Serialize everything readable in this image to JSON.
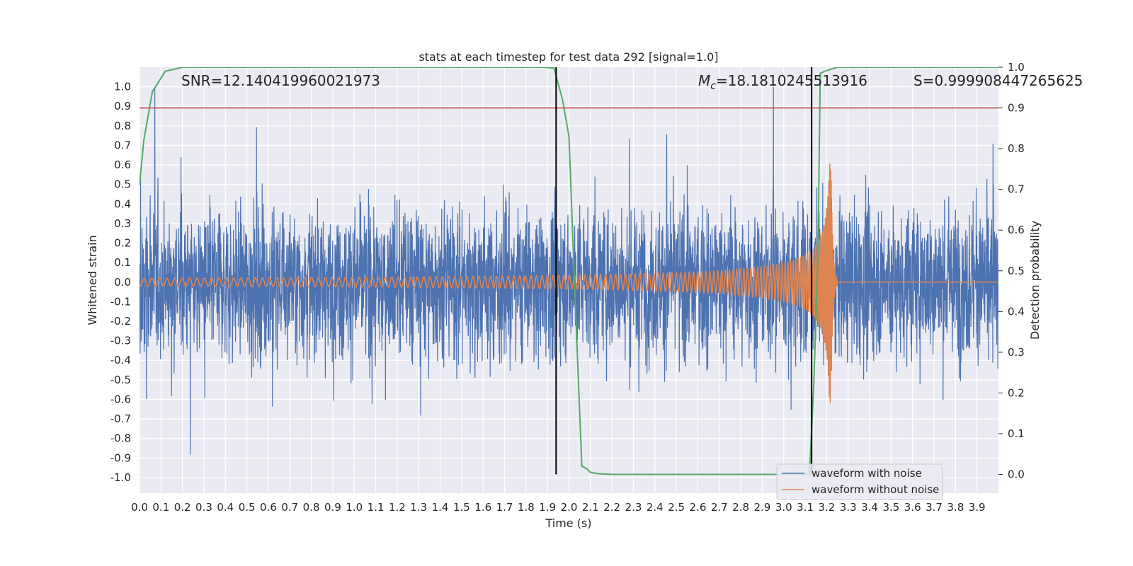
{
  "chart_data": {
    "type": "line",
    "title": "stats at each timestep for test data 292 [signal=1.0]",
    "xlabel": "Time (s)",
    "ylabel_left": "Whitened strain",
    "ylabel_right": "Detection probability",
    "xlim": [
      0.0,
      4.0
    ],
    "ylim_left": [
      -1.08,
      1.1
    ],
    "ylim_right": [
      -0.046,
      1.0
    ],
    "x_ticks": [
      "0.0",
      "0.1",
      "0.2",
      "0.3",
      "0.4",
      "0.5",
      "0.6",
      "0.7",
      "0.8",
      "0.9",
      "1.0",
      "1.1",
      "1.2",
      "1.3",
      "1.4",
      "1.5",
      "1.6",
      "1.7",
      "1.8",
      "1.9",
      "2.0",
      "2.1",
      "2.2",
      "2.3",
      "2.4",
      "2.5",
      "2.6",
      "2.7",
      "2.8",
      "2.9",
      "3.0",
      "3.1",
      "3.2",
      "3.3",
      "3.4",
      "3.5",
      "3.6",
      "3.7",
      "3.8",
      "3.9"
    ],
    "y_ticks_left": [
      "1.0",
      "0.9",
      "0.8",
      "0.7",
      "0.6",
      "0.5",
      "0.4",
      "0.3",
      "0.2",
      "0.1",
      "0.0",
      "-0.1",
      "-0.2",
      "-0.3",
      "-0.4",
      "-0.5",
      "-0.6",
      "-0.7",
      "-0.8",
      "-0.9",
      "-1.0"
    ],
    "y_ticks_right": [
      "1.0",
      "0.9",
      "0.8",
      "0.7",
      "0.6",
      "0.5",
      "0.4",
      "0.3",
      "0.2",
      "0.1",
      "0.0"
    ],
    "annotations": {
      "snr": "SNR=12.140419960021973",
      "mc_symbol": "M",
      "mc_sub": "c",
      "mc_value": "=18.1810245513916",
      "s": "S=0.999908447265625"
    },
    "threshold": 0.9,
    "vlines": [
      1.94,
      3.13
    ],
    "grid": true,
    "legend_position": "lower-right",
    "series": [
      {
        "name": "waveform with noise",
        "color": "#4c72b0",
        "approx_amplitude": 0.45,
        "peak_abs": 1.0
      },
      {
        "name": "waveform without noise",
        "color": "#dd8452",
        "chirp_merger_time": 3.22,
        "amplitude_start": 0.02,
        "amplitude_peak": 0.62
      },
      {
        "color": "#55a868",
        "x": [
          0.0,
          0.02,
          0.06,
          0.12,
          0.2,
          0.3,
          1.8,
          1.87,
          1.93,
          1.97,
          2.0,
          2.02,
          2.04,
          2.06,
          2.08,
          2.1,
          2.13,
          2.2,
          3.0,
          3.12,
          3.14,
          3.16,
          3.17,
          3.19,
          3.25,
          3.4,
          4.0
        ],
        "y": [
          0.71,
          0.82,
          0.94,
          0.99,
          1.0,
          1.0,
          1.0,
          1.0,
          0.998,
          0.92,
          0.83,
          0.55,
          0.28,
          0.02,
          0.015,
          0.005,
          0.002,
          0.0,
          0.0,
          0.0,
          0.22,
          0.55,
          0.985,
          0.99,
          1.0,
          1.0,
          1.0
        ]
      }
    ],
    "colors": {
      "axes_bg": "#eaeaf2",
      "grid": "#ffffff",
      "threshold": "#c44e52",
      "vline": "#000000"
    }
  }
}
